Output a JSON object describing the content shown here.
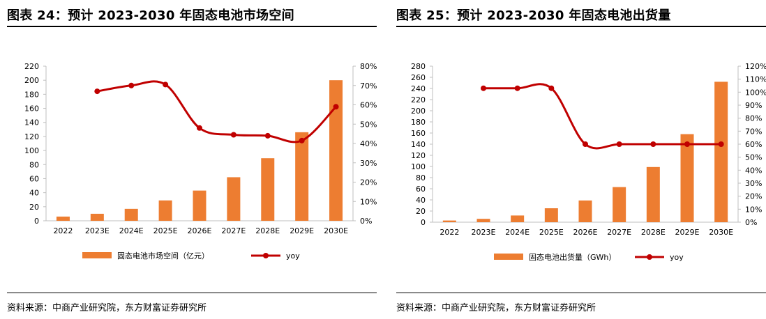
{
  "colors": {
    "bar": "#ED7D31",
    "line": "#C00000",
    "axis": "#BFBFBF"
  },
  "chart_data": [
    {
      "type": "bar",
      "panel": "left",
      "title": "图表 24：预计 2023-2030 年固态电池市场空间",
      "source": "资料来源：中商产业研究院，东方财富证券研究所",
      "categories": [
        "2022",
        "2023E",
        "2024E",
        "2025E",
        "2026E",
        "2027E",
        "2028E",
        "2029E",
        "2030E"
      ],
      "y_left": {
        "min": 0,
        "max": 220,
        "step": 20,
        "ticks": [
          "0",
          "20",
          "40",
          "60",
          "80",
          "100",
          "120",
          "140",
          "160",
          "180",
          "200",
          "220"
        ]
      },
      "y_right": {
        "min": 0,
        "max": 80,
        "step": 10,
        "ticks": [
          "0%",
          "10%",
          "20%",
          "30%",
          "40%",
          "50%",
          "60%",
          "70%",
          "80%"
        ]
      },
      "series": [
        {
          "name": "固态电池市场空间（亿元）",
          "type": "bar",
          "axis": "left",
          "values": [
            6,
            10,
            17,
            29,
            43,
            62,
            89,
            126,
            200
          ]
        },
        {
          "name": "yoy",
          "type": "line",
          "axis": "right",
          "smooth": true,
          "values": [
            null,
            67,
            70,
            70.5,
            48,
            44.5,
            44,
            41.5,
            59
          ]
        }
      ],
      "legend_position": "bottom"
    },
    {
      "type": "bar",
      "panel": "right",
      "title": "图表 25：预计 2023-2030 年固态电池出货量",
      "source": "资料来源：中商产业研究院，东方财富证券研究所",
      "categories": [
        "2022",
        "2023E",
        "2024E",
        "2025E",
        "2026E",
        "2027E",
        "2028E",
        "2029E",
        "2030E"
      ],
      "y_left": {
        "min": 0,
        "max": 280,
        "step": 20,
        "ticks": [
          "0",
          "20",
          "40",
          "60",
          "80",
          "100",
          "120",
          "140",
          "160",
          "180",
          "200",
          "220",
          "240",
          "260",
          "280"
        ]
      },
      "y_right": {
        "min": 0,
        "max": 120,
        "step": 10,
        "ticks": [
          "0%",
          "10%",
          "20%",
          "30%",
          "40%",
          "50%",
          "60%",
          "70%",
          "80%",
          "90%",
          "100%",
          "110%",
          "120%"
        ]
      },
      "series": [
        {
          "name": "固态电池出货量（GWh）",
          "type": "bar",
          "axis": "left",
          "values": [
            3,
            6,
            12,
            25,
            39,
            63,
            99,
            158,
            252
          ]
        },
        {
          "name": "yoy",
          "type": "line",
          "axis": "right",
          "smooth": true,
          "values": [
            null,
            103,
            103,
            103,
            60,
            60,
            60,
            60,
            60
          ]
        }
      ],
      "legend_position": "bottom"
    }
  ]
}
